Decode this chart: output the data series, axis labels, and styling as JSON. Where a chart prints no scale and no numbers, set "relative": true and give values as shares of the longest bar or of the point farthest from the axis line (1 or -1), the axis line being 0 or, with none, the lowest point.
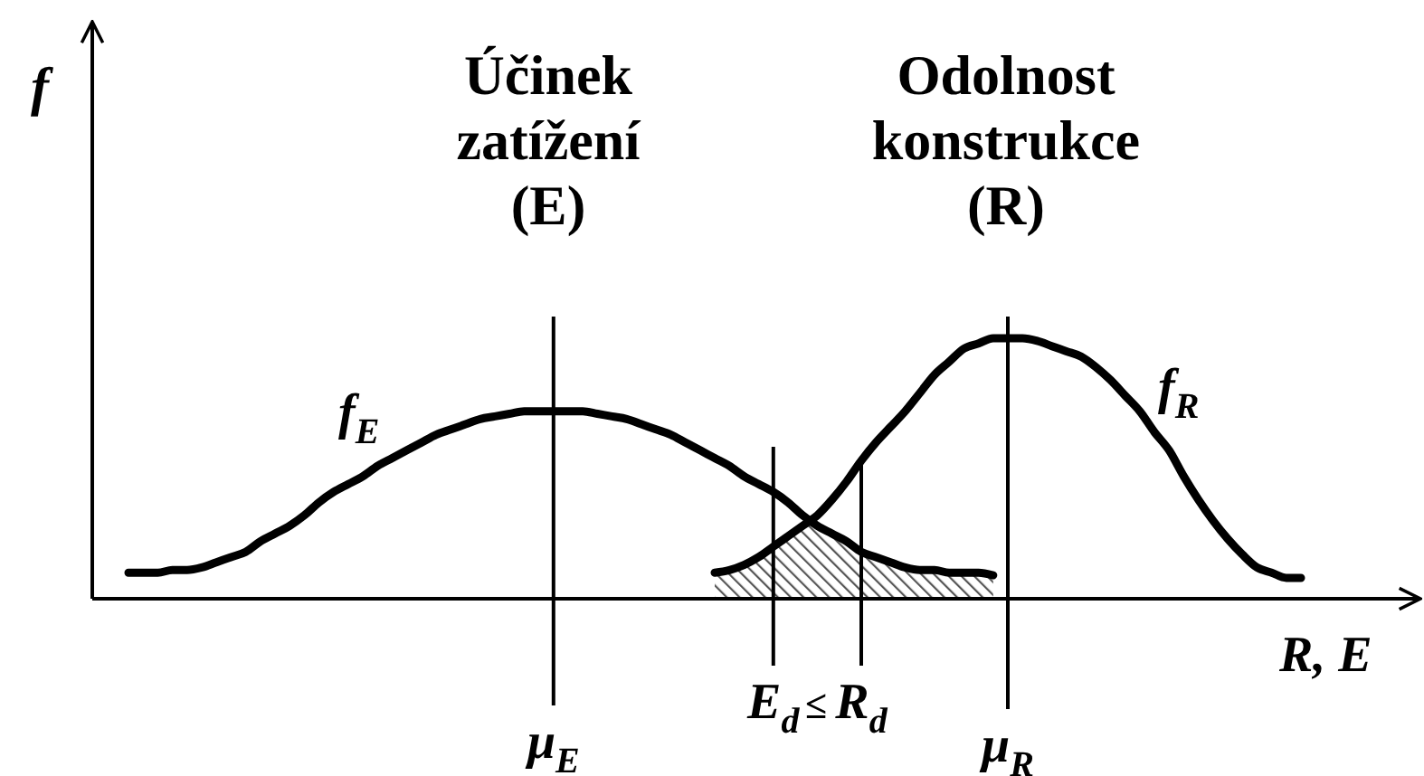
{
  "chart_data": {
    "type": "line",
    "relative": true,
    "xlabel": "R, E",
    "ylabel": "f",
    "categories": [
      null,
      null,
      null,
      null,
      null,
      null,
      null,
      null,
      null,
      null,
      null,
      null,
      null,
      null,
      null,
      null,
      null,
      null,
      null,
      null,
      null,
      null,
      null,
      null,
      null,
      null,
      null,
      null,
      null,
      "μ$_{E}$",
      null,
      null,
      null,
      null,
      null,
      null,
      null,
      null,
      null,
      null,
      null,
      null,
      null,
      null,
      "E$_{d}$",
      null,
      null,
      null,
      null,
      null,
      "R$_{d}$",
      null,
      null,
      null,
      null,
      null,
      null,
      null,
      null,
      null,
      "μ$_{R}$",
      null,
      null,
      null,
      null,
      null,
      null,
      null,
      null,
      null,
      null,
      null,
      null,
      null,
      null,
      null,
      null,
      null,
      null,
      null,
      null
    ],
    "series": [
      {
        "name": "f$_{E}$",
        "color": "#000000",
        "values": [
          0.1,
          0.1,
          0.1,
          0.11,
          0.11,
          0.12,
          0.14,
          0.16,
          0.18,
          0.22,
          0.25,
          0.28,
          0.32,
          0.37,
          0.41,
          0.44,
          0.47,
          0.51,
          0.54,
          0.57,
          0.6,
          0.63,
          0.65,
          0.67,
          0.69,
          0.7,
          0.71,
          0.72,
          0.72,
          0.72,
          0.72,
          0.72,
          0.71,
          0.7,
          0.69,
          0.67,
          0.65,
          0.63,
          0.6,
          0.57,
          0.54,
          0.51,
          0.47,
          0.44,
          0.41,
          0.37,
          0.32,
          0.28,
          0.25,
          0.22,
          0.18,
          0.16,
          0.14,
          0.12,
          0.11,
          0.11,
          0.1,
          0.1,
          0.1,
          0.09,
          null,
          null,
          null,
          null,
          null,
          null,
          null,
          null,
          null,
          null,
          null,
          null,
          null,
          null,
          null,
          null,
          null,
          null,
          null,
          null,
          null
        ]
      },
      {
        "name": "f$_{R}$",
        "color": "#000000",
        "values": [
          null,
          null,
          null,
          null,
          null,
          null,
          null,
          null,
          null,
          null,
          null,
          null,
          null,
          null,
          null,
          null,
          null,
          null,
          null,
          null,
          null,
          null,
          null,
          null,
          null,
          null,
          null,
          null,
          null,
          null,
          null,
          null,
          null,
          null,
          null,
          null,
          null,
          null,
          null,
          null,
          0.1,
          0.11,
          0.13,
          0.16,
          0.2,
          0.24,
          0.28,
          0.32,
          0.38,
          0.45,
          0.53,
          0.6,
          0.66,
          0.72,
          0.79,
          0.86,
          0.91,
          0.96,
          0.98,
          1.0,
          1.0,
          1.0,
          0.99,
          0.97,
          0.95,
          0.93,
          0.89,
          0.84,
          0.78,
          0.72,
          0.64,
          0.57,
          0.47,
          0.38,
          0.3,
          0.23,
          0.17,
          0.12,
          0.1,
          0.08,
          0.08
        ]
      },
      {
        "type": "area",
        "color": "#555555",
        "values": [
          null,
          null,
          null,
          null,
          null,
          null,
          null,
          null,
          null,
          null,
          null,
          null,
          null,
          null,
          null,
          null,
          null,
          null,
          null,
          null,
          null,
          null,
          null,
          null,
          null,
          null,
          null,
          null,
          null,
          null,
          null,
          null,
          null,
          null,
          null,
          null,
          null,
          null,
          null,
          null,
          0.1,
          0.11,
          0.13,
          0.16,
          0.2,
          0.24,
          0.28,
          0.28,
          0.25,
          0.22,
          0.18,
          0.16,
          0.14,
          0.12,
          0.11,
          0.11,
          0.1,
          0.1,
          0.1,
          0.09,
          null,
          null,
          null,
          null,
          null,
          null,
          null,
          null,
          null,
          null,
          null,
          null,
          null,
          null,
          null,
          null,
          null,
          null,
          null,
          null,
          null
        ]
      }
    ],
    "ref_lines": [
      {
        "axis": "x",
        "value": "μ$_{E}$"
      },
      {
        "axis": "x",
        "value": "E$_{d}$"
      },
      {
        "axis": "x",
        "value": "R$_{d}$"
      },
      {
        "axis": "x",
        "value": "μ$_{R}$"
      }
    ],
    "annotations": [
      "Účinek zatížení (E)",
      "Odolnost konstrukce (R)",
      "≤"
    ]
  }
}
